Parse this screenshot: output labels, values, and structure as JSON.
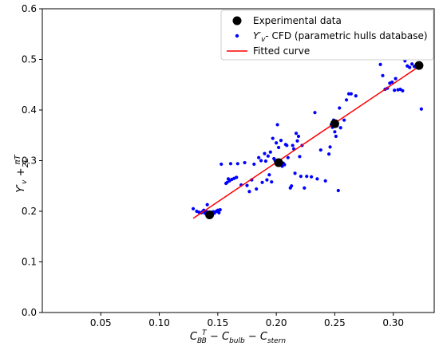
{
  "chart_data": {
    "type": "scatter",
    "xlim": [
      0.0,
      0.335
    ],
    "ylim": [
      0.0,
      0.6
    ],
    "x_ticks": [
      0.05,
      0.1,
      0.15,
      0.2,
      0.25,
      0.3
    ],
    "x_tick_labels": [
      "0.05",
      "0.10",
      "0.15",
      "0.20",
      "0.25",
      "0.30"
    ],
    "y_ticks": [
      0.0,
      0.1,
      0.2,
      0.3,
      0.4,
      0.5,
      0.6
    ],
    "y_tick_labels": [
      "0.0",
      "0.1",
      "0.2",
      "0.3",
      "0.4",
      "0.5",
      "0.6"
    ],
    "xlabel": "C_{B} T/B − C_{bulb} − C_{stern}",
    "ylabel": "Y′_{v} + πT/2L",
    "grid": false,
    "legend_position": "top-right",
    "legend": [
      {
        "label": "Experimental data",
        "marker": "large-dot",
        "color": "#000000"
      },
      {
        "label": "Y′v- CFD (parametric hulls database)",
        "marker": "small-dot",
        "color": "#0000ff"
      },
      {
        "label": "Fitted curve",
        "marker": "line",
        "color": "#ff0000"
      }
    ],
    "series": [
      {
        "name": "Experimental data",
        "kind": "scatter",
        "color": "#000000",
        "points": [
          [
            0.143,
            0.193
          ],
          [
            0.202,
            0.296
          ],
          [
            0.25,
            0.373
          ],
          [
            0.322,
            0.488
          ]
        ]
      },
      {
        "name": "Y′v- CFD (parametric hulls database)",
        "kind": "scatter",
        "color": "#0000ff",
        "points": [
          [
            0.129,
            0.205
          ],
          [
            0.132,
            0.2
          ],
          [
            0.134,
            0.198
          ],
          [
            0.136,
            0.197
          ],
          [
            0.137,
            0.199
          ],
          [
            0.138,
            0.202
          ],
          [
            0.139,
            0.196
          ],
          [
            0.14,
            0.2
          ],
          [
            0.141,
            0.213
          ],
          [
            0.142,
            0.196
          ],
          [
            0.144,
            0.197
          ],
          [
            0.145,
            0.195
          ],
          [
            0.146,
            0.199
          ],
          [
            0.147,
            0.196
          ],
          [
            0.148,
            0.199
          ],
          [
            0.149,
            0.2
          ],
          [
            0.15,
            0.202
          ],
          [
            0.151,
            0.197
          ],
          [
            0.152,
            0.203
          ],
          [
            0.153,
            0.293
          ],
          [
            0.157,
            0.255
          ],
          [
            0.158,
            0.257
          ],
          [
            0.159,
            0.264
          ],
          [
            0.16,
            0.26
          ],
          [
            0.161,
            0.294
          ],
          [
            0.162,
            0.263
          ],
          [
            0.164,
            0.265
          ],
          [
            0.166,
            0.267
          ],
          [
            0.167,
            0.294
          ],
          [
            0.17,
            0.252
          ],
          [
            0.173,
            0.296
          ],
          [
            0.175,
            0.251
          ],
          [
            0.177,
            0.239
          ],
          [
            0.179,
            0.262
          ],
          [
            0.181,
            0.293
          ],
          [
            0.183,
            0.244
          ],
          [
            0.185,
            0.306
          ],
          [
            0.187,
            0.3
          ],
          [
            0.188,
            0.257
          ],
          [
            0.19,
            0.314
          ],
          [
            0.191,
            0.299
          ],
          [
            0.192,
            0.262
          ],
          [
            0.193,
            0.309
          ],
          [
            0.194,
            0.272
          ],
          [
            0.195,
            0.317
          ],
          [
            0.196,
            0.258
          ],
          [
            0.197,
            0.344
          ],
          [
            0.198,
            0.304
          ],
          [
            0.199,
            0.3
          ],
          [
            0.2,
            0.335
          ],
          [
            0.201,
            0.371
          ],
          [
            0.202,
            0.326
          ],
          [
            0.203,
            0.3
          ],
          [
            0.204,
            0.34
          ],
          [
            0.205,
            0.289
          ],
          [
            0.206,
            0.295
          ],
          [
            0.207,
            0.292
          ],
          [
            0.208,
            0.332
          ],
          [
            0.209,
            0.33
          ],
          [
            0.21,
            0.306
          ],
          [
            0.212,
            0.246
          ],
          [
            0.213,
            0.25
          ],
          [
            0.214,
            0.33
          ],
          [
            0.215,
            0.323
          ],
          [
            0.216,
            0.275
          ],
          [
            0.217,
            0.354
          ],
          [
            0.218,
            0.339
          ],
          [
            0.219,
            0.348
          ],
          [
            0.22,
            0.308
          ],
          [
            0.221,
            0.269
          ],
          [
            0.222,
            0.33
          ],
          [
            0.224,
            0.246
          ],
          [
            0.226,
            0.269
          ],
          [
            0.23,
            0.268
          ],
          [
            0.233,
            0.395
          ],
          [
            0.235,
            0.264
          ],
          [
            0.238,
            0.321
          ],
          [
            0.242,
            0.26
          ],
          [
            0.245,
            0.313
          ],
          [
            0.246,
            0.327
          ],
          [
            0.247,
            0.371
          ],
          [
            0.248,
            0.366
          ],
          [
            0.249,
            0.38
          ],
          [
            0.25,
            0.357
          ],
          [
            0.251,
            0.348
          ],
          [
            0.252,
            0.369
          ],
          [
            0.253,
            0.241
          ],
          [
            0.254,
            0.404
          ],
          [
            0.255,
            0.365
          ],
          [
            0.258,
            0.38
          ],
          [
            0.26,
            0.42
          ],
          [
            0.262,
            0.432
          ],
          [
            0.264,
            0.432
          ],
          [
            0.268,
            0.428
          ],
          [
            0.289,
            0.49
          ],
          [
            0.291,
            0.468
          ],
          [
            0.293,
            0.441
          ],
          [
            0.295,
            0.443
          ],
          [
            0.297,
            0.453
          ],
          [
            0.299,
            0.455
          ],
          [
            0.301,
            0.439
          ],
          [
            0.302,
            0.462
          ],
          [
            0.304,
            0.44
          ],
          [
            0.306,
            0.441
          ],
          [
            0.308,
            0.438
          ],
          [
            0.31,
            0.497
          ],
          [
            0.312,
            0.487
          ],
          [
            0.314,
            0.484
          ],
          [
            0.316,
            0.491
          ],
          [
            0.318,
            0.486
          ],
          [
            0.324,
            0.402
          ]
        ]
      },
      {
        "name": "Fitted curve",
        "kind": "line",
        "color": "#ff0000",
        "points": [
          [
            0.129,
            0.186
          ],
          [
            0.322,
            0.486
          ]
        ]
      }
    ]
  }
}
